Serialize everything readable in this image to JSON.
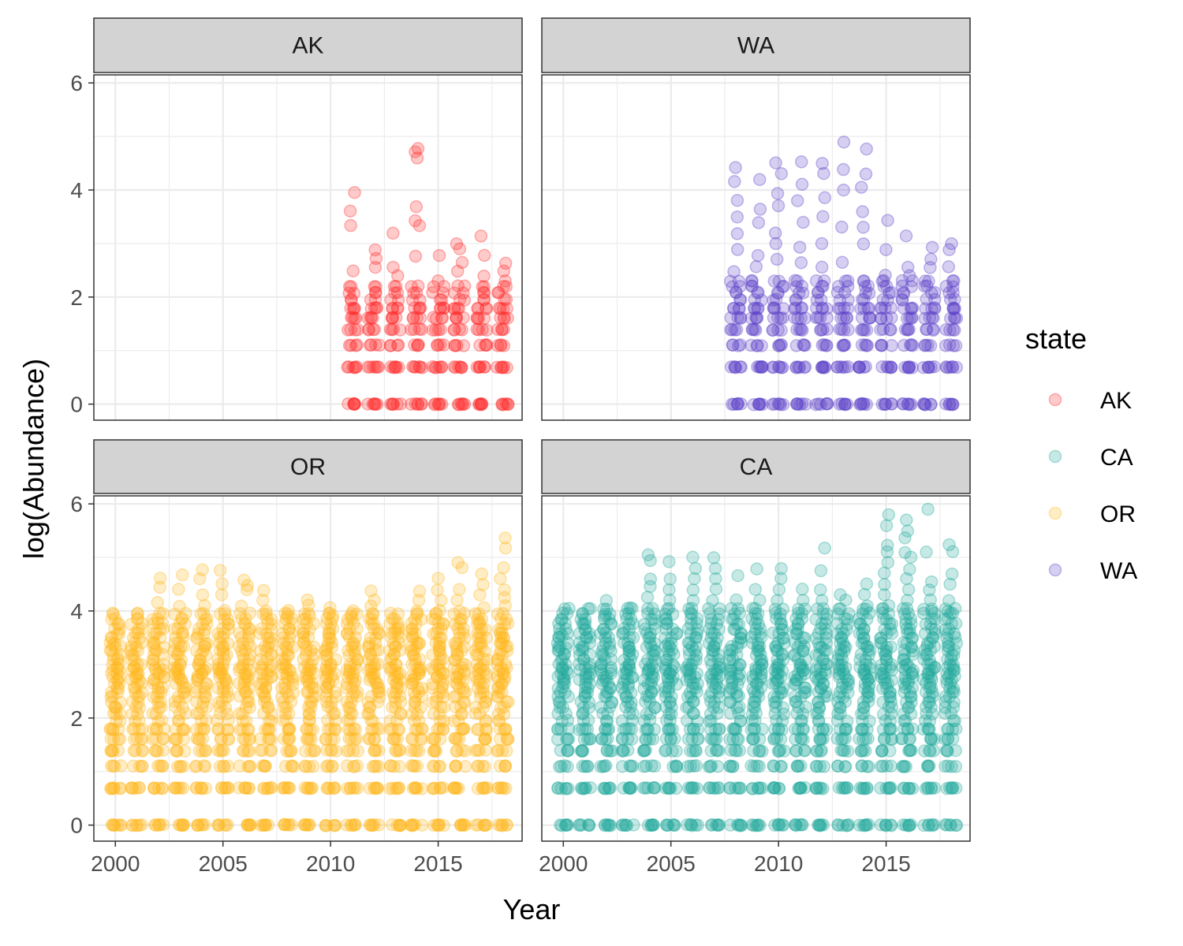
{
  "chart_data": {
    "type": "scatter",
    "layout": "facet_wrap 2x2",
    "xlabel": "Year",
    "ylabel": "log(Abundance)",
    "xlim": [
      1999.0,
      2018.9
    ],
    "ylim": [
      -0.3,
      6.15
    ],
    "x_ticks": [
      "2000",
      "2005",
      "2010",
      "2015"
    ],
    "y_ticks": [
      "0",
      "2",
      "4",
      "6"
    ],
    "x_tick_values": [
      2000,
      2005,
      2010,
      2015
    ],
    "y_tick_values": [
      0,
      2,
      4,
      6
    ],
    "point_alpha": 0.25,
    "legend": {
      "title": "state",
      "position": "right",
      "entries": [
        {
          "label": "AK",
          "color": "#ff2a2a"
        },
        {
          "label": "CA",
          "color": "#21a89a"
        },
        {
          "label": "OR",
          "color": "#ffb81c"
        },
        {
          "label": "WA",
          "color": "#5a3fc8"
        }
      ]
    },
    "panels": [
      {
        "label": "AK",
        "color": "#ff2a2a",
        "years": [
          2011,
          2018
        ],
        "levels": [
          0,
          0.69,
          1.1,
          1.39,
          1.61,
          1.79,
          1.95,
          2.08,
          2.2
        ],
        "extra_values": [
          [
            2011,
            3.95
          ],
          [
            2011,
            3.6
          ],
          [
            2011,
            3.33
          ],
          [
            2011,
            2.48
          ],
          [
            2012,
            2.89
          ],
          [
            2012,
            2.71
          ],
          [
            2012,
            2.56
          ],
          [
            2013,
            3.2
          ],
          [
            2013,
            2.56
          ],
          [
            2013,
            2.4
          ],
          [
            2014,
            4.78
          ],
          [
            2014,
            4.71
          ],
          [
            2014,
            4.6
          ],
          [
            2014,
            3.69
          ],
          [
            2014,
            3.43
          ],
          [
            2014,
            3.33
          ],
          [
            2014,
            2.77
          ],
          [
            2015,
            2.77
          ],
          [
            2015,
            2.3
          ],
          [
            2016,
            3.0
          ],
          [
            2016,
            2.89
          ],
          [
            2016,
            2.64
          ],
          [
            2016,
            2.48
          ],
          [
            2017,
            3.14
          ],
          [
            2017,
            2.77
          ],
          [
            2017,
            2.4
          ],
          [
            2018,
            2.64
          ],
          [
            2018,
            2.48
          ],
          [
            2018,
            2.3
          ]
        ]
      },
      {
        "label": "WA",
        "color": "#5a3fc8",
        "years": [
          2008,
          2018
        ],
        "levels": [
          0,
          0.69,
          1.1,
          1.39,
          1.61,
          1.79,
          1.95,
          2.08,
          2.2,
          2.3
        ],
        "extra_values": [
          [
            2008,
            4.42
          ],
          [
            2008,
            4.15
          ],
          [
            2008,
            3.8
          ],
          [
            2008,
            3.5
          ],
          [
            2008,
            3.18
          ],
          [
            2008,
            2.89
          ],
          [
            2008,
            2.48
          ],
          [
            2009,
            4.2
          ],
          [
            2009,
            3.64
          ],
          [
            2009,
            3.4
          ],
          [
            2009,
            2.77
          ],
          [
            2009,
            2.56
          ],
          [
            2010,
            4.51
          ],
          [
            2010,
            4.3
          ],
          [
            2010,
            3.93
          ],
          [
            2010,
            3.71
          ],
          [
            2010,
            3.2
          ],
          [
            2010,
            3.0
          ],
          [
            2010,
            2.71
          ],
          [
            2011,
            4.52
          ],
          [
            2011,
            4.1
          ],
          [
            2011,
            3.8
          ],
          [
            2011,
            3.4
          ],
          [
            2011,
            2.94
          ],
          [
            2011,
            2.64
          ],
          [
            2012,
            4.5
          ],
          [
            2012,
            4.3
          ],
          [
            2012,
            3.85
          ],
          [
            2012,
            3.5
          ],
          [
            2012,
            3.0
          ],
          [
            2012,
            2.56
          ],
          [
            2013,
            4.9
          ],
          [
            2013,
            4.38
          ],
          [
            2013,
            4.0
          ],
          [
            2013,
            3.3
          ],
          [
            2013,
            2.64
          ],
          [
            2014,
            4.76
          ],
          [
            2014,
            4.3
          ],
          [
            2014,
            4.06
          ],
          [
            2014,
            3.6
          ],
          [
            2014,
            3.3
          ],
          [
            2014,
            3.0
          ],
          [
            2015,
            3.43
          ],
          [
            2015,
            2.89
          ],
          [
            2015,
            2.4
          ],
          [
            2016,
            3.14
          ],
          [
            2016,
            2.56
          ],
          [
            2016,
            2.4
          ],
          [
            2017,
            2.94
          ],
          [
            2017,
            2.71
          ],
          [
            2017,
            2.56
          ],
          [
            2018,
            3.0
          ],
          [
            2018,
            2.89
          ],
          [
            2018,
            2.56
          ]
        ]
      },
      {
        "label": "OR",
        "color": "#ffb81c",
        "years": [
          2000,
          2018
        ],
        "levels": [
          0,
          0.69,
          1.1,
          1.39,
          1.61,
          1.79,
          1.95,
          2.08,
          2.2,
          2.3,
          2.4,
          2.48,
          2.56,
          2.64,
          2.71,
          2.77,
          2.83,
          2.89,
          2.94,
          3.0,
          3.09,
          3.18,
          3.26,
          3.33,
          3.4,
          3.5,
          3.58,
          3.66,
          3.76,
          3.85,
          3.95
        ],
        "extra_values": [
          [
            2000,
            3.37
          ],
          [
            2000,
            3.1
          ],
          [
            2000,
            2.2
          ],
          [
            2000,
            2.08
          ],
          [
            2000,
            1.79
          ],
          [
            2000,
            1.39
          ],
          [
            2000,
            0.69
          ],
          [
            2000,
            0
          ],
          [
            2002,
            4.62
          ],
          [
            2002,
            4.45
          ],
          [
            2002,
            4.16
          ],
          [
            2002,
            3.78
          ],
          [
            2003,
            4.67
          ],
          [
            2003,
            4.4
          ],
          [
            2003,
            4.08
          ],
          [
            2004,
            4.76
          ],
          [
            2004,
            4.6
          ],
          [
            2004,
            4.3
          ],
          [
            2004,
            4.1
          ],
          [
            2005,
            4.76
          ],
          [
            2005,
            4.5
          ],
          [
            2005,
            4.3
          ],
          [
            2005,
            4.0
          ],
          [
            2006,
            4.57
          ],
          [
            2006,
            4.47
          ],
          [
            2006,
            4.4
          ],
          [
            2006,
            4.1
          ],
          [
            2007,
            4.38
          ],
          [
            2007,
            4.2
          ],
          [
            2007,
            4.0
          ],
          [
            2008,
            4.0
          ],
          [
            2008,
            3.9
          ],
          [
            2009,
            4.2
          ],
          [
            2009,
            4.1
          ],
          [
            2009,
            3.9
          ],
          [
            2010,
            4.07
          ],
          [
            2010,
            3.9
          ],
          [
            2011,
            4.0
          ],
          [
            2011,
            3.9
          ],
          [
            2012,
            4.38
          ],
          [
            2012,
            4.2
          ],
          [
            2012,
            4.1
          ],
          [
            2013,
            3.7
          ],
          [
            2013,
            3.6
          ],
          [
            2014,
            4.38
          ],
          [
            2014,
            4.2
          ],
          [
            2014,
            4.0
          ],
          [
            2014,
            3.4
          ],
          [
            2015,
            4.6
          ],
          [
            2015,
            4.38
          ],
          [
            2015,
            4.2
          ],
          [
            2015,
            4.0
          ],
          [
            2015,
            3.8
          ],
          [
            2016,
            4.9
          ],
          [
            2016,
            4.8
          ],
          [
            2016,
            4.4
          ],
          [
            2016,
            4.2
          ],
          [
            2016,
            4.0
          ],
          [
            2017,
            4.7
          ],
          [
            2017,
            4.5
          ],
          [
            2017,
            4.3
          ],
          [
            2017,
            4.06
          ],
          [
            2017,
            3.8
          ],
          [
            2017,
            3.5
          ],
          [
            2018,
            5.36
          ],
          [
            2018,
            5.18
          ],
          [
            2018,
            4.8
          ],
          [
            2018,
            4.6
          ],
          [
            2018,
            4.4
          ],
          [
            2018,
            4.25
          ],
          [
            2018,
            4.1
          ],
          [
            2018,
            3.5
          ],
          [
            2018,
            3.4
          ]
        ]
      },
      {
        "label": "CA",
        "color": "#21a89a",
        "years": [
          2000,
          2018
        ],
        "levels": [
          0,
          0.69,
          1.1,
          1.39,
          1.61,
          1.79,
          1.95,
          2.08,
          2.2,
          2.3,
          2.4,
          2.48,
          2.56,
          2.64,
          2.71,
          2.77,
          2.83,
          2.89,
          2.94,
          3.0,
          3.09,
          3.18,
          3.26,
          3.33,
          3.4,
          3.5,
          3.58,
          3.66,
          3.76,
          3.85,
          3.95,
          4.04
        ],
        "extra_values": [
          [
            2000,
            3.53
          ],
          [
            2000,
            3.3
          ],
          [
            2001,
            3.75
          ],
          [
            2001,
            3.5
          ],
          [
            2002,
            4.2
          ],
          [
            2002,
            3.9
          ],
          [
            2003,
            4.05
          ],
          [
            2004,
            5.05
          ],
          [
            2004,
            4.95
          ],
          [
            2004,
            4.6
          ],
          [
            2004,
            4.45
          ],
          [
            2004,
            4.25
          ],
          [
            2005,
            4.93
          ],
          [
            2005,
            4.6
          ],
          [
            2005,
            4.4
          ],
          [
            2005,
            4.2
          ],
          [
            2006,
            5.0
          ],
          [
            2006,
            4.8
          ],
          [
            2006,
            4.6
          ],
          [
            2006,
            4.4
          ],
          [
            2006,
            4.2
          ],
          [
            2007,
            5.0
          ],
          [
            2007,
            4.8
          ],
          [
            2007,
            4.6
          ],
          [
            2007,
            4.4
          ],
          [
            2007,
            4.2
          ],
          [
            2008,
            4.65
          ],
          [
            2008,
            4.2
          ],
          [
            2009,
            4.78
          ],
          [
            2009,
            4.4
          ],
          [
            2009,
            4.2
          ],
          [
            2010,
            4.8
          ],
          [
            2010,
            4.6
          ],
          [
            2010,
            4.4
          ],
          [
            2010,
            4.2
          ],
          [
            2011,
            4.4
          ],
          [
            2011,
            4.2
          ],
          [
            2012,
            5.17
          ],
          [
            2012,
            4.76
          ],
          [
            2012,
            4.4
          ],
          [
            2012,
            4.2
          ],
          [
            2013,
            4.3
          ],
          [
            2013,
            4.2
          ],
          [
            2014,
            4.5
          ],
          [
            2014,
            4.3
          ],
          [
            2014,
            4.1
          ],
          [
            2015,
            5.8
          ],
          [
            2015,
            5.6
          ],
          [
            2015,
            5.23
          ],
          [
            2015,
            5.1
          ],
          [
            2015,
            4.9
          ],
          [
            2015,
            4.7
          ],
          [
            2015,
            4.5
          ],
          [
            2015,
            4.3
          ],
          [
            2015,
            4.1
          ],
          [
            2016,
            5.7
          ],
          [
            2016,
            5.5
          ],
          [
            2016,
            5.37
          ],
          [
            2016,
            5.1
          ],
          [
            2016,
            5.0
          ],
          [
            2016,
            4.78
          ],
          [
            2016,
            4.6
          ],
          [
            2016,
            4.4
          ],
          [
            2016,
            4.2
          ],
          [
            2017,
            5.9
          ],
          [
            2017,
            5.1
          ],
          [
            2017,
            4.55
          ],
          [
            2017,
            4.38
          ],
          [
            2017,
            4.2
          ],
          [
            2017,
            4.0
          ],
          [
            2018,
            5.23
          ],
          [
            2018,
            5.1
          ],
          [
            2018,
            4.7
          ],
          [
            2018,
            4.5
          ],
          [
            2018,
            4.2
          ],
          [
            2018,
            4.0
          ]
        ]
      }
    ]
  }
}
